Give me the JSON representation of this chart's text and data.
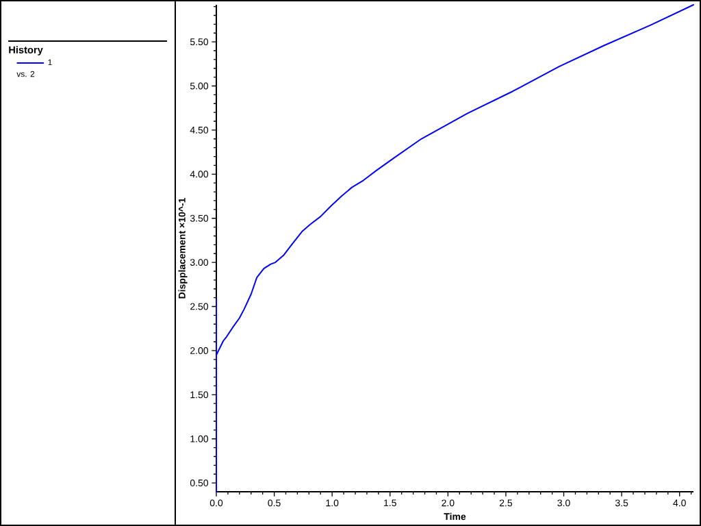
{
  "chart_data": {
    "type": "line",
    "xlabel": "Time",
    "ylabel": "Dispplacement ×10^-1",
    "legend_title": "History",
    "annotations": [
      "vs. 2"
    ],
    "legend": "left",
    "x": [
      0,
      0,
      0,
      0.06,
      0.09,
      0.14,
      0.2,
      0.24,
      0.3,
      0.35,
      0.41,
      0.47,
      0.51,
      0.58,
      0.65,
      0.74,
      0.81,
      0.9,
      0.99,
      1.08,
      1.17,
      1.27,
      1.38,
      1.54,
      1.77,
      2.17,
      2.56,
      2.96,
      3.35,
      3.75,
      4.12
    ],
    "series": [
      {
        "name": "1",
        "color": "#0000ff",
        "values": [
          0.4,
          2.58,
          1.95,
          2.11,
          2.16,
          2.26,
          2.37,
          2.47,
          2.64,
          2.83,
          2.93,
          2.98,
          3.0,
          3.08,
          3.2,
          3.35,
          3.43,
          3.52,
          3.64,
          3.75,
          3.85,
          3.93,
          4.04,
          4.19,
          4.4,
          4.69,
          4.94,
          5.22,
          5.46,
          5.69,
          5.92
        ]
      }
    ],
    "xlim": [
      0,
      4.12
    ],
    "ylim": [
      0.4,
      5.92
    ],
    "xticks": [
      {
        "value": 0,
        "label": "0.0"
      },
      {
        "value": 0.1,
        "label": null
      },
      {
        "value": 0.2,
        "label": null
      },
      {
        "value": 0.3,
        "label": null
      },
      {
        "value": 0.4,
        "label": null
      },
      0.5,
      {
        "value": 0.6,
        "label": null
      },
      {
        "value": 0.7,
        "label": null
      },
      {
        "value": 0.8,
        "label": null
      },
      {
        "value": 0.9,
        "label": null
      },
      {
        "value": 1,
        "label": "1.0"
      },
      {
        "value": 1.1,
        "label": null
      },
      {
        "value": 1.2,
        "label": null
      },
      {
        "value": 1.3,
        "label": null
      },
      {
        "value": 1.4,
        "label": null
      },
      1.5,
      {
        "value": 1.6,
        "label": null
      },
      {
        "value": 1.7,
        "label": null
      },
      {
        "value": 1.8,
        "label": null
      },
      {
        "value": 1.9,
        "label": null
      },
      {
        "value": 2,
        "label": "2.0"
      },
      {
        "value": 2.1,
        "label": null
      },
      {
        "value": 2.2,
        "label": null
      },
      {
        "value": 2.3,
        "label": null
      },
      {
        "value": 2.4,
        "label": null
      },
      2.5,
      {
        "value": 2.6,
        "label": null
      },
      {
        "value": 2.7,
        "label": null
      },
      {
        "value": 2.8,
        "label": null
      },
      {
        "value": 2.9,
        "label": null
      },
      {
        "value": 3,
        "label": "3.0"
      },
      {
        "value": 3.1,
        "label": null
      },
      {
        "value": 3.2,
        "label": null
      },
      {
        "value": 3.3,
        "label": null
      },
      {
        "value": 3.4,
        "label": null
      },
      3.5,
      {
        "value": 3.6,
        "label": null
      },
      {
        "value": 3.7,
        "label": null
      },
      {
        "value": 3.8,
        "label": null
      },
      {
        "value": 3.9,
        "label": null
      },
      {
        "value": 4,
        "label": "4.0"
      },
      {
        "value": 4.1,
        "label": null
      }
    ],
    "yticks": [
      {
        "value": 0.5,
        "label": "0.50"
      },
      {
        "value": 0.6,
        "label": null
      },
      {
        "value": 0.7,
        "label": null
      },
      {
        "value": 0.8,
        "label": null
      },
      {
        "value": 0.9,
        "label": null
      },
      {
        "value": 1,
        "label": "1.00"
      },
      {
        "value": 1.1,
        "label": null
      },
      {
        "value": 1.2,
        "label": null
      },
      {
        "value": 1.3,
        "label": null
      },
      {
        "value": 1.4,
        "label": null
      },
      {
        "value": 1.5,
        "label": "1.50"
      },
      {
        "value": 1.6,
        "label": null
      },
      {
        "value": 1.7,
        "label": null
      },
      {
        "value": 1.8,
        "label": null
      },
      {
        "value": 1.9,
        "label": null
      },
      {
        "value": 2,
        "label": "2.00"
      },
      {
        "value": 2.1,
        "label": null
      },
      {
        "value": 2.2,
        "label": null
      },
      {
        "value": 2.3,
        "label": null
      },
      {
        "value": 2.4,
        "label": null
      },
      {
        "value": 2.5,
        "label": "2.50"
      },
      {
        "value": 2.6,
        "label": null
      },
      {
        "value": 2.7,
        "label": null
      },
      {
        "value": 2.8,
        "label": null
      },
      {
        "value": 2.9,
        "label": null
      },
      {
        "value": 3,
        "label": "3.00"
      },
      {
        "value": 3.1,
        "label": null
      },
      {
        "value": 3.2,
        "label": null
      },
      {
        "value": 3.3,
        "label": null
      },
      {
        "value": 3.4,
        "label": null
      },
      {
        "value": 3.5,
        "label": "3.50"
      },
      {
        "value": 3.6,
        "label": null
      },
      {
        "value": 3.7,
        "label": null
      },
      {
        "value": 3.8,
        "label": null
      },
      {
        "value": 3.9,
        "label": null
      },
      {
        "value": 4,
        "label": "4.00"
      },
      {
        "value": 4.1,
        "label": null
      },
      {
        "value": 4.2,
        "label": null
      },
      {
        "value": 4.3,
        "label": null
      },
      {
        "value": 4.4,
        "label": null
      },
      {
        "value": 4.5,
        "label": "4.50"
      },
      {
        "value": 4.6,
        "label": null
      },
      {
        "value": 4.7,
        "label": null
      },
      {
        "value": 4.8,
        "label": null
      },
      {
        "value": 4.9,
        "label": null
      },
      {
        "value": 5,
        "label": "5.00"
      },
      {
        "value": 5.1,
        "label": null
      },
      {
        "value": 5.2,
        "label": null
      },
      {
        "value": 5.3,
        "label": null
      },
      {
        "value": 5.4,
        "label": null
      },
      {
        "value": 5.5,
        "label": "5.50"
      },
      {
        "value": 5.6,
        "label": null
      },
      {
        "value": 5.7,
        "label": null
      },
      {
        "value": 5.8,
        "label": null
      },
      {
        "value": 5.9,
        "label": null
      }
    ]
  }
}
